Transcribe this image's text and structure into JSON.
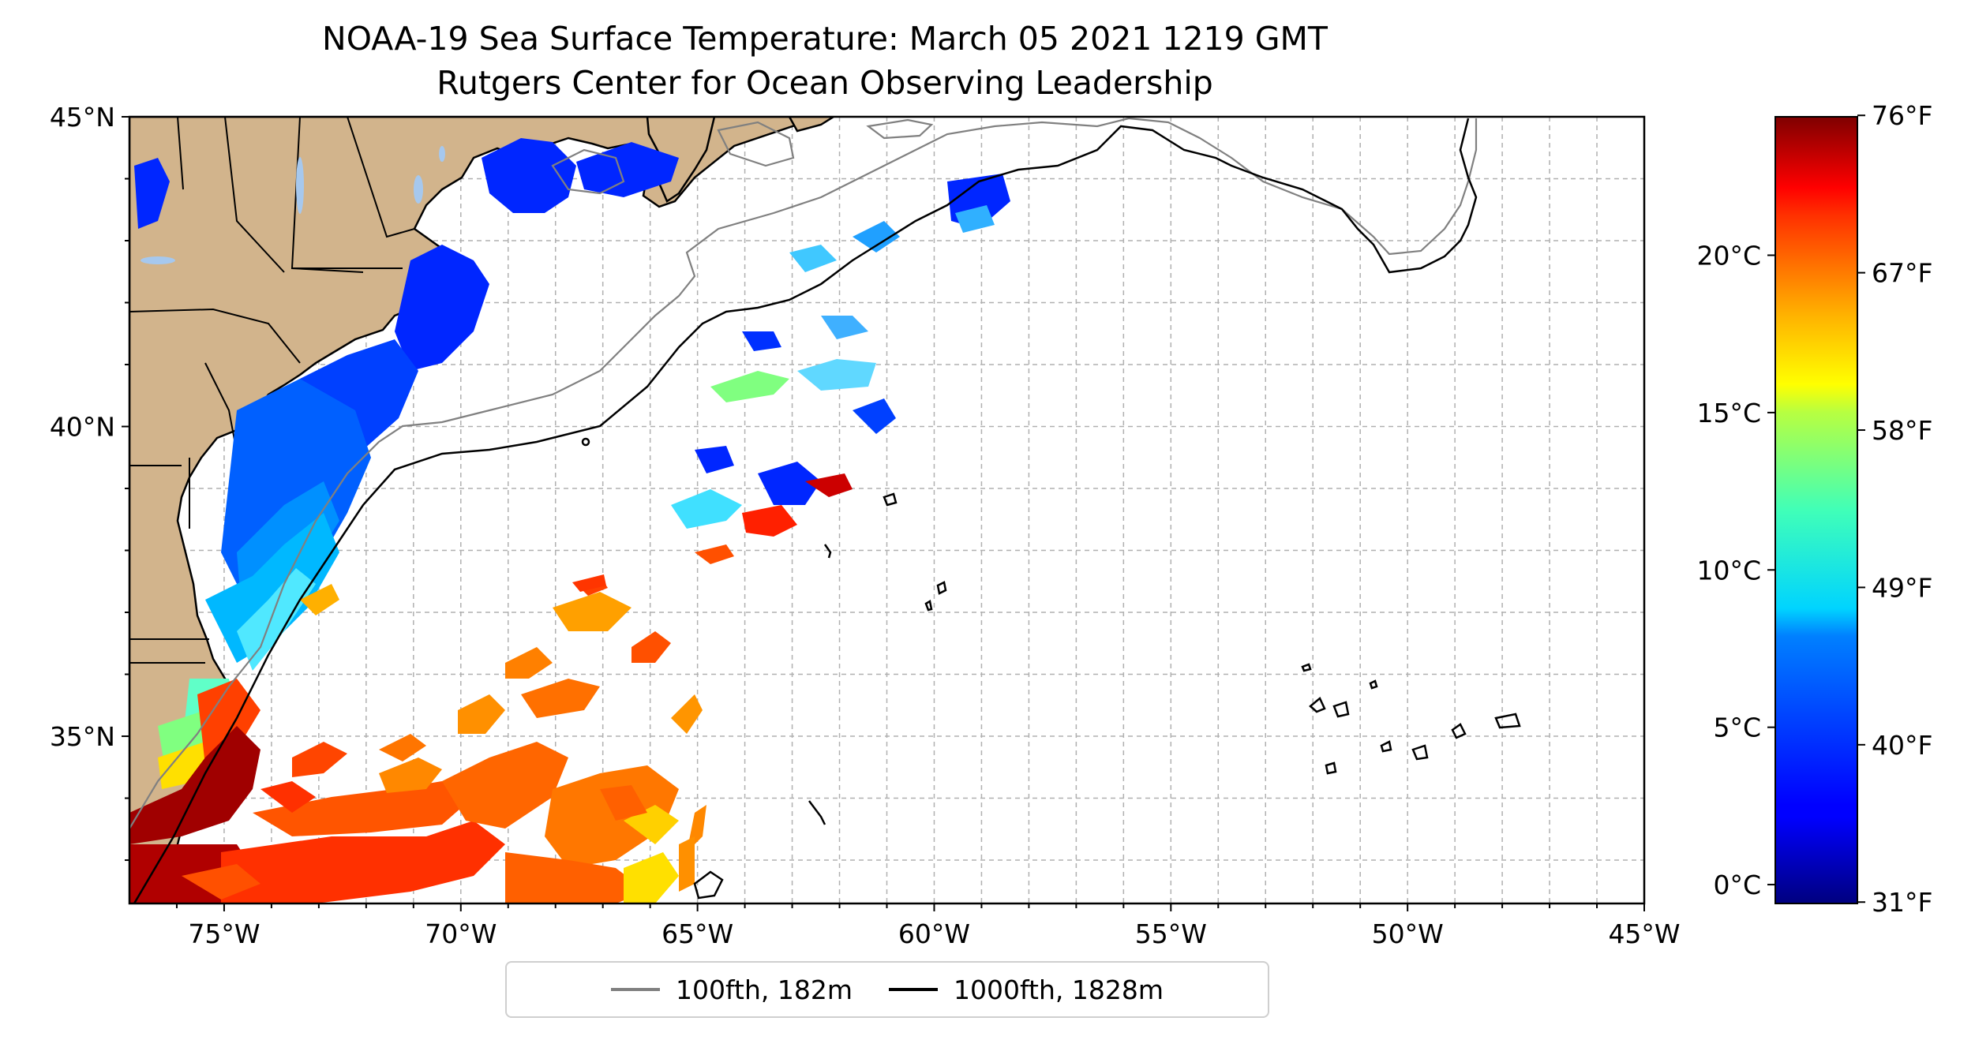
{
  "title": "NOAA-19 Sea Surface Temperature: March 05 2021 1219 GMT",
  "subtitle": "Rutgers Center for Ocean Observing Leadership",
  "map": {
    "lon_range": [
      -77,
      -45
    ],
    "lat_range": [
      32.3,
      45
    ],
    "lon_ticks": [
      {
        "value": -75,
        "label": "75°W"
      },
      {
        "value": -70,
        "label": "70°W"
      },
      {
        "value": -65,
        "label": "65°W"
      },
      {
        "value": -60,
        "label": "60°W"
      },
      {
        "value": -55,
        "label": "55°W"
      },
      {
        "value": -50,
        "label": "50°W"
      },
      {
        "value": -45,
        "label": "45°W"
      }
    ],
    "lat_ticks": [
      {
        "value": 35,
        "label": "35°N"
      },
      {
        "value": 40,
        "label": "40°N"
      },
      {
        "value": 45,
        "label": "45°N"
      }
    ],
    "grid": true,
    "land_color": "#d2b48c",
    "ocean_color": "#ffffff"
  },
  "colorbar": {
    "colormap": "jet",
    "celsius_range": [
      -0.6,
      24.4
    ],
    "celsius_ticks": [
      {
        "value": 0,
        "label": "0°C"
      },
      {
        "value": 5,
        "label": "5°C"
      },
      {
        "value": 10,
        "label": "10°C"
      },
      {
        "value": 15,
        "label": "15°C"
      },
      {
        "value": 20,
        "label": "20°C"
      }
    ],
    "fahrenheit_ticks": [
      {
        "value": 31,
        "label": "31°F"
      },
      {
        "value": 40,
        "label": "40°F"
      },
      {
        "value": 49,
        "label": "49°F"
      },
      {
        "value": 58,
        "label": "58°F"
      },
      {
        "value": 67,
        "label": "67°F"
      },
      {
        "value": 76,
        "label": "76°F"
      }
    ]
  },
  "legend": {
    "items": [
      {
        "label": "100fth, 182m",
        "color": "#808080"
      },
      {
        "label": "1000fth, 1828m",
        "color": "#000000"
      }
    ]
  }
}
